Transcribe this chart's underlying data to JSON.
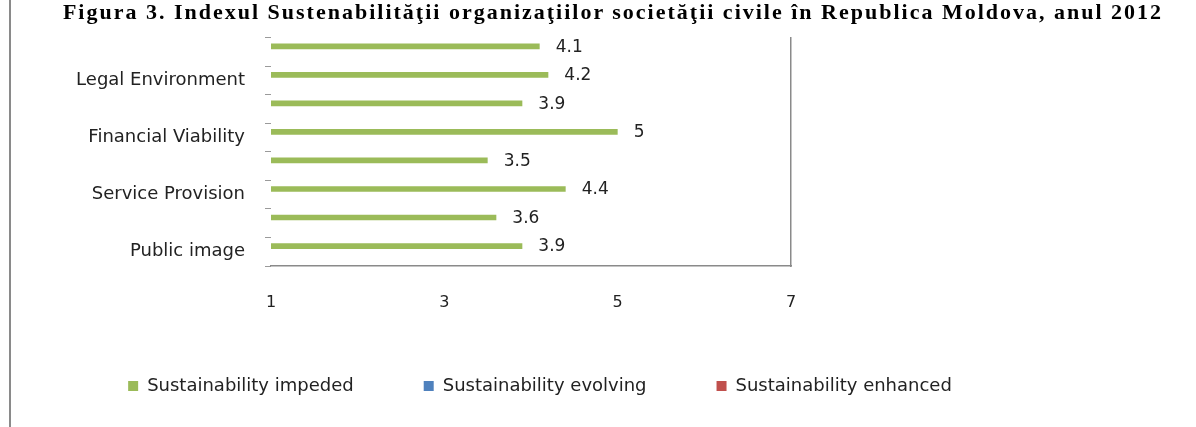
{
  "chart_data": {
    "type": "bar",
    "orientation": "horizontal",
    "title": "Figura 3. Indexul Sustenabilităţii organizaţiilor societăţii civile în Republica Moldova, anul 2012",
    "categories": [
      null,
      "Legal Environment",
      null,
      "Financial Viability",
      null,
      "Service Provision",
      null,
      "Public image"
    ],
    "series": [
      {
        "name": "Sustainability impeded",
        "color": "#9bbb59",
        "values": [
          4.1,
          4.2,
          3.9,
          5,
          3.5,
          4.4,
          3.6,
          3.9
        ]
      },
      {
        "name": "Sustainability evolving",
        "color": "#4f81bd",
        "values": [
          null,
          null,
          null,
          null,
          null,
          null,
          null,
          null
        ]
      },
      {
        "name": "Sustainability enhanced",
        "color": "#c0504d",
        "values": [
          null,
          null,
          null,
          null,
          null,
          null,
          null,
          null
        ]
      }
    ],
    "xlim": [
      1,
      7
    ],
    "xticks": [
      1,
      3,
      5,
      7
    ],
    "grid": false,
    "legend": "bottom",
    "data_labels": true
  }
}
